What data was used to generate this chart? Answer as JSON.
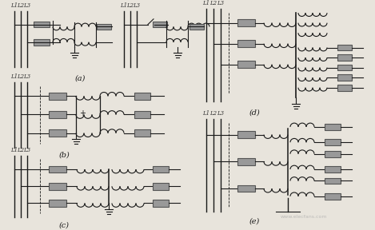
{
  "bg_color": "#e8e4dc",
  "line_color": "#1a1a1a",
  "fig_width": 4.69,
  "fig_height": 2.88,
  "dpi": 100,
  "labels": {
    "a": "(a)",
    "b": "(b)",
    "c": "(c)",
    "d": "(d)",
    "e": "(e)"
  }
}
